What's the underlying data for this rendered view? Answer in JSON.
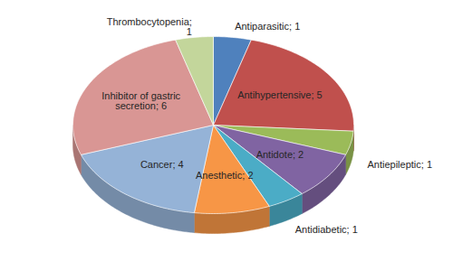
{
  "chart_data": {
    "type": "pie",
    "categories": [
      "Antiparasitic",
      "Antihypertensive",
      "Antiepileptic",
      "Antidote",
      "Antidiabetic",
      "Anesthetic",
      "Cancer",
      "Inhibitor of gastric secretion",
      "Thrombocytopenia"
    ],
    "values": [
      1,
      5,
      1,
      2,
      1,
      2,
      4,
      6,
      1
    ],
    "value_labels": [
      "Antiparasitic; 1",
      "Antihypertensive; 5",
      "Antiepileptic; 1",
      "Antidote; 2",
      "Antidiabetic; 1",
      "Anesthetic; 2",
      "Cancer; 4",
      "Inhibitor of gastric\nsecretion; 6",
      "Thrombocytopenia;\n1"
    ],
    "colors": [
      "#4F81BD",
      "#C0504D",
      "#9BBB59",
      "#8064A2",
      "#4BACC6",
      "#F79646",
      "#95B3D7",
      "#D99694",
      "#C3D69B"
    ],
    "data_labels": true
  }
}
